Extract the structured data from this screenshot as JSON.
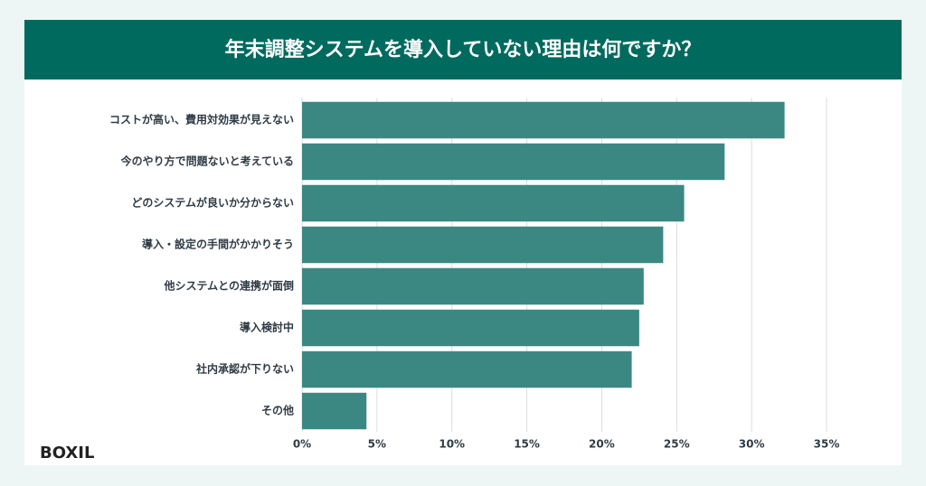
{
  "chart_data": {
    "type": "barh",
    "title": "年末調整システムを導入していない理由は何ですか？",
    "categories": [
      "コストが高い、費用対効果が見えない",
      "今のやり方で問題ないと考えている",
      "どのシステムが良いか分からない",
      "導入・設定の手間がかかりそう",
      "他システムとの連携が面倒",
      "導入検討中",
      "社内承認が下りない",
      "その他"
    ],
    "values": [
      32.2,
      28.2,
      25.5,
      24.1,
      22.8,
      22.5,
      22.0,
      4.3
    ],
    "color": "#3b8882",
    "xlim": [
      0,
      35
    ],
    "xticks": [
      {
        "value": 0,
        "label": "0%"
      },
      {
        "value": 5,
        "label": "5%"
      },
      {
        "value": 10,
        "label": "10%"
      },
      {
        "value": 15,
        "label": "15%"
      },
      {
        "value": 20,
        "label": "20%"
      },
      {
        "value": 25,
        "label": "25%"
      },
      {
        "value": 30,
        "label": "30%"
      },
      {
        "value": 35,
        "label": "35%"
      }
    ],
    "grid": true
  },
  "logo": "BOXIL"
}
